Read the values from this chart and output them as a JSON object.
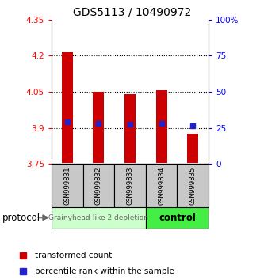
{
  "title": "GDS5113 / 10490972",
  "samples": [
    "GSM999831",
    "GSM999832",
    "GSM999833",
    "GSM999834",
    "GSM999835"
  ],
  "bar_top": [
    4.215,
    4.05,
    4.04,
    4.055,
    3.875
  ],
  "bar_bottom": [
    3.752,
    3.752,
    3.752,
    3.752,
    3.752
  ],
  "percentile_values": [
    3.925,
    3.918,
    3.916,
    3.918,
    3.907
  ],
  "ylim_left": [
    3.75,
    4.35
  ],
  "ylim_right": [
    0,
    100
  ],
  "yticks_left": [
    3.75,
    3.9,
    4.05,
    4.2,
    4.35
  ],
  "yticks_right": [
    0,
    25,
    50,
    75,
    100
  ],
  "ytick_labels_left": [
    "3.75",
    "3.9",
    "4.05",
    "4.2",
    "4.35"
  ],
  "ytick_labels_right": [
    "0",
    "25",
    "50",
    "75",
    "100%"
  ],
  "bar_color": "#cc0000",
  "dot_color": "#2222cc",
  "group1_label": "Grainyhead-like 2 depletion",
  "group2_label": "control",
  "group1_color": "#ccffcc",
  "group2_color": "#44ee44",
  "group1_samples": [
    0,
    1,
    2
  ],
  "group2_samples": [
    3,
    4
  ],
  "protocol_label": "protocol",
  "legend_bar_label": "transformed count",
  "legend_dot_label": "percentile rank within the sample",
  "bar_width": 0.35,
  "title_fontsize": 10,
  "tick_label_fontsize": 7.5,
  "group1_label_fontsize": 6.5,
  "group2_label_fontsize": 8.5,
  "legend_fontsize": 7.5,
  "sample_fontsize": 6.5
}
